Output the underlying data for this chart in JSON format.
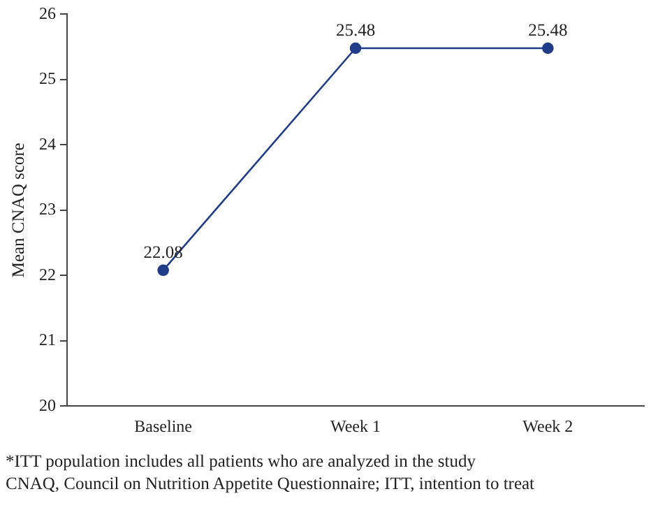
{
  "chart_data": {
    "type": "line",
    "ylabel": "Mean CNAQ score",
    "categories": [
      "Baseline",
      "Week 1",
      "Week 2"
    ],
    "series": [
      {
        "color": "#1f3c88",
        "values": [
          22.08,
          25.48,
          25.48
        ]
      }
    ],
    "ylim": [
      20,
      26
    ],
    "yticks": [
      20,
      21,
      22,
      23,
      24,
      25,
      26
    ],
    "grid": false,
    "legend": false,
    "marker": "circle",
    "line_style": "solid",
    "data_labels": true,
    "annotations": [
      "*ITT population includes all patients who are analyzed in the study",
      "CNAQ, Council on Nutrition Appetite Questionnaire; ITT, intention to treat"
    ]
  }
}
